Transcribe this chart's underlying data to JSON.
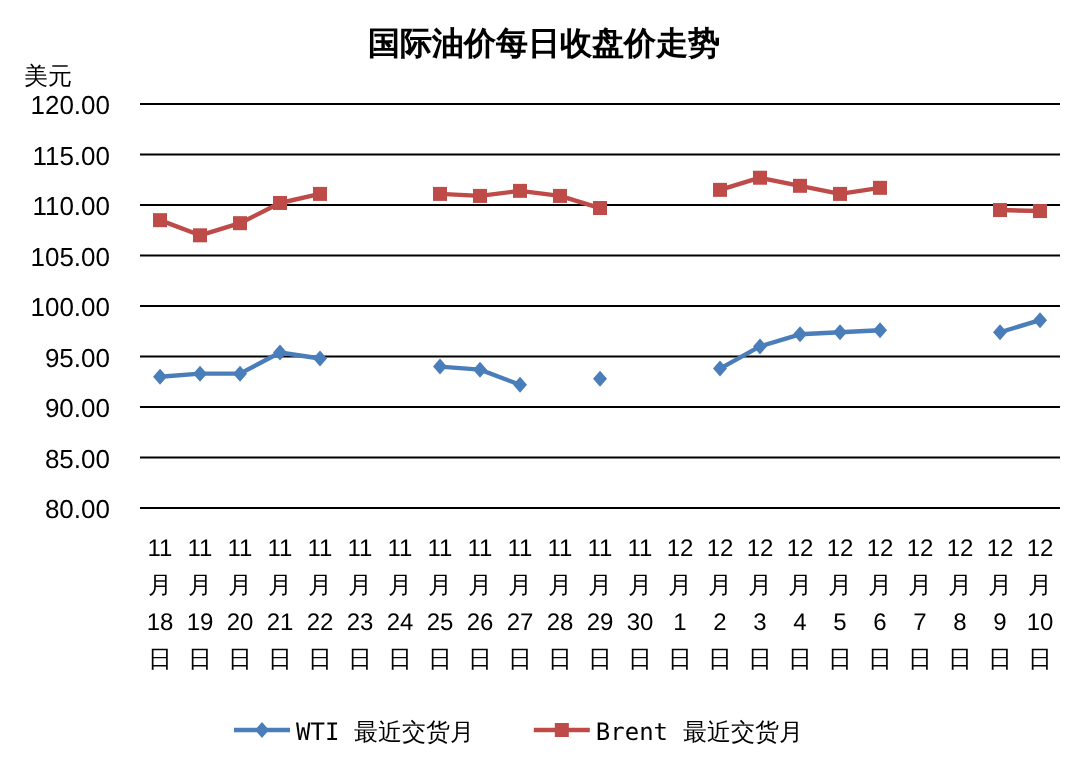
{
  "chart_data": {
    "type": "line",
    "title": "国际油价每日收盘价走势",
    "ylabel": "美元",
    "categories": [
      "11月18日",
      "11月19日",
      "11月20日",
      "11月21日",
      "11月22日",
      "11月23日",
      "11月24日",
      "11月25日",
      "11月26日",
      "11月27日",
      "11月28日",
      "11月29日",
      "11月30日",
      "12月1日",
      "12月2日",
      "12月3日",
      "12月4日",
      "12月5日",
      "12月6日",
      "12月7日",
      "12月8日",
      "12月9日",
      "12月10日"
    ],
    "series": [
      {
        "name": "WTI 最近交货月",
        "color": "#4a7ebb",
        "marker": "diamond",
        "values": [
          93.0,
          93.3,
          93.3,
          95.4,
          94.8,
          null,
          null,
          94.0,
          93.7,
          92.2,
          null,
          92.8,
          null,
          null,
          93.8,
          96.0,
          97.2,
          97.4,
          97.6,
          null,
          null,
          97.4,
          98.6
        ]
      },
      {
        "name": "Brent 最近交货月",
        "color": "#be4b48",
        "marker": "square",
        "values": [
          108.5,
          107.0,
          108.2,
          110.2,
          111.1,
          null,
          null,
          111.1,
          110.9,
          111.4,
          110.9,
          109.7,
          null,
          null,
          111.5,
          112.7,
          111.9,
          111.1,
          111.7,
          null,
          null,
          109.5,
          109.4
        ]
      }
    ],
    "ylim": [
      80,
      120
    ],
    "yticks": [
      {
        "value": 80,
        "label": "80.00"
      },
      {
        "value": 85,
        "label": "85.00"
      },
      {
        "value": 90,
        "label": "90.00"
      },
      {
        "value": 95,
        "label": "95.00"
      },
      {
        "value": 100,
        "label": "100.00"
      },
      {
        "value": 105,
        "label": "105.00"
      },
      {
        "value": 110,
        "label": "110.00"
      },
      {
        "value": 115,
        "label": "115.00"
      },
      {
        "value": 120,
        "label": "120.00"
      }
    ],
    "grid": "y",
    "legend": "bottom",
    "line_style": "solid"
  }
}
